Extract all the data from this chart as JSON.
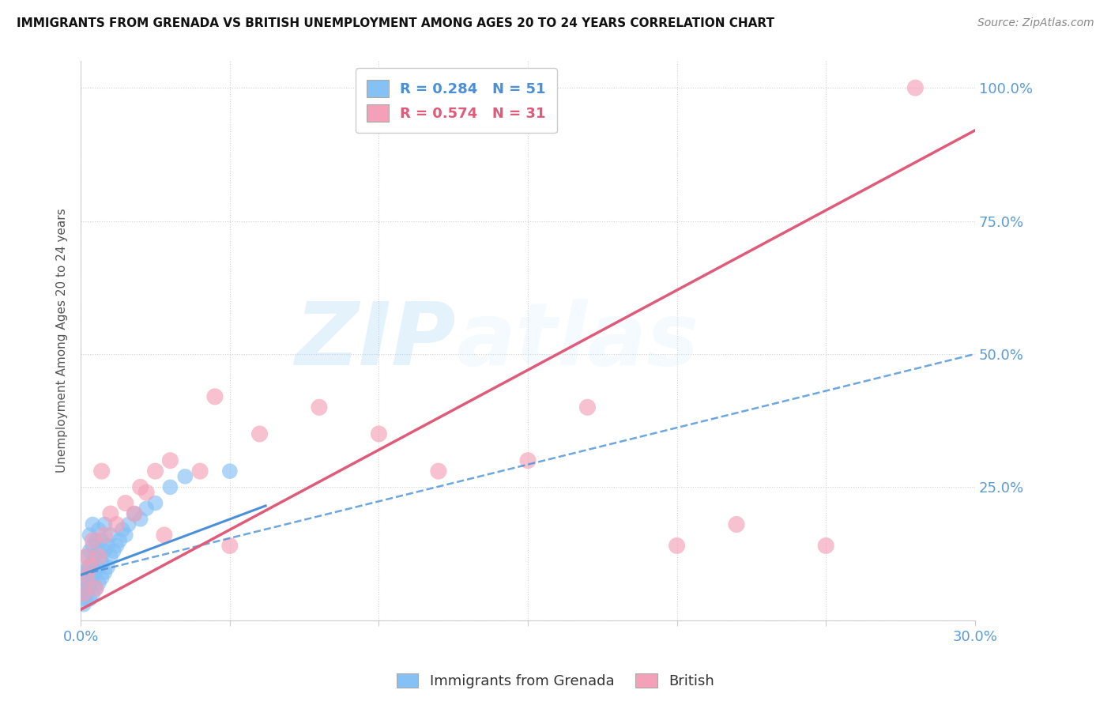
{
  "title": "IMMIGRANTS FROM GRENADA VS BRITISH UNEMPLOYMENT AMONG AGES 20 TO 24 YEARS CORRELATION CHART",
  "source": "Source: ZipAtlas.com",
  "ylabel": "Unemployment Among Ages 20 to 24 years",
  "xlim": [
    0.0,
    0.3
  ],
  "ylim": [
    0.0,
    1.05
  ],
  "xticks": [
    0.0,
    0.05,
    0.1,
    0.15,
    0.2,
    0.25,
    0.3
  ],
  "yticks": [
    0.0,
    0.25,
    0.5,
    0.75,
    1.0
  ],
  "R1": 0.284,
  "N1": 51,
  "R2": 0.574,
  "N2": 31,
  "color_blue": "#85c1f5",
  "color_pink": "#f4a0b8",
  "color_blue_dark": "#4a90d9",
  "color_pink_dark": "#e05a7a",
  "watermark_zip": "ZIP",
  "watermark_atlas": "atlas",
  "legend1_label": "Immigrants from Grenada",
  "legend2_label": "British",
  "blue_scatter_x": [
    0.0005,
    0.001,
    0.001,
    0.0015,
    0.0015,
    0.002,
    0.002,
    0.002,
    0.0025,
    0.0025,
    0.003,
    0.003,
    0.003,
    0.003,
    0.003,
    0.004,
    0.004,
    0.004,
    0.004,
    0.004,
    0.005,
    0.005,
    0.005,
    0.005,
    0.006,
    0.006,
    0.006,
    0.006,
    0.007,
    0.007,
    0.007,
    0.008,
    0.008,
    0.008,
    0.009,
    0.009,
    0.01,
    0.01,
    0.011,
    0.012,
    0.013,
    0.014,
    0.015,
    0.016,
    0.018,
    0.02,
    0.022,
    0.025,
    0.03,
    0.035,
    0.05
  ],
  "blue_scatter_y": [
    0.05,
    0.03,
    0.08,
    0.04,
    0.07,
    0.05,
    0.09,
    0.12,
    0.06,
    0.1,
    0.04,
    0.07,
    0.1,
    0.13,
    0.16,
    0.05,
    0.08,
    0.11,
    0.14,
    0.18,
    0.06,
    0.09,
    0.12,
    0.15,
    0.07,
    0.1,
    0.13,
    0.17,
    0.08,
    0.11,
    0.15,
    0.09,
    0.13,
    0.18,
    0.1,
    0.14,
    0.12,
    0.16,
    0.13,
    0.14,
    0.15,
    0.17,
    0.16,
    0.18,
    0.2,
    0.19,
    0.21,
    0.22,
    0.25,
    0.27,
    0.28
  ],
  "pink_scatter_x": [
    0.001,
    0.002,
    0.002,
    0.003,
    0.004,
    0.005,
    0.006,
    0.007,
    0.008,
    0.01,
    0.012,
    0.015,
    0.018,
    0.02,
    0.022,
    0.025,
    0.028,
    0.03,
    0.04,
    0.045,
    0.05,
    0.06,
    0.08,
    0.1,
    0.12,
    0.15,
    0.17,
    0.2,
    0.22,
    0.25,
    0.28
  ],
  "pink_scatter_y": [
    0.05,
    0.08,
    0.12,
    0.1,
    0.15,
    0.06,
    0.12,
    0.28,
    0.16,
    0.2,
    0.18,
    0.22,
    0.2,
    0.25,
    0.24,
    0.28,
    0.16,
    0.3,
    0.28,
    0.42,
    0.14,
    0.35,
    0.4,
    0.35,
    0.28,
    0.3,
    0.4,
    0.14,
    0.18,
    0.14,
    1.0
  ],
  "blue_solid_trend_x": [
    0.0,
    0.062
  ],
  "blue_solid_trend_y": [
    0.085,
    0.215
  ],
  "blue_dash_trend_x": [
    0.0,
    0.3
  ],
  "blue_dash_trend_y": [
    0.085,
    0.5
  ],
  "pink_trend_x": [
    0.0,
    0.3
  ],
  "pink_trend_y": [
    0.02,
    0.92
  ]
}
